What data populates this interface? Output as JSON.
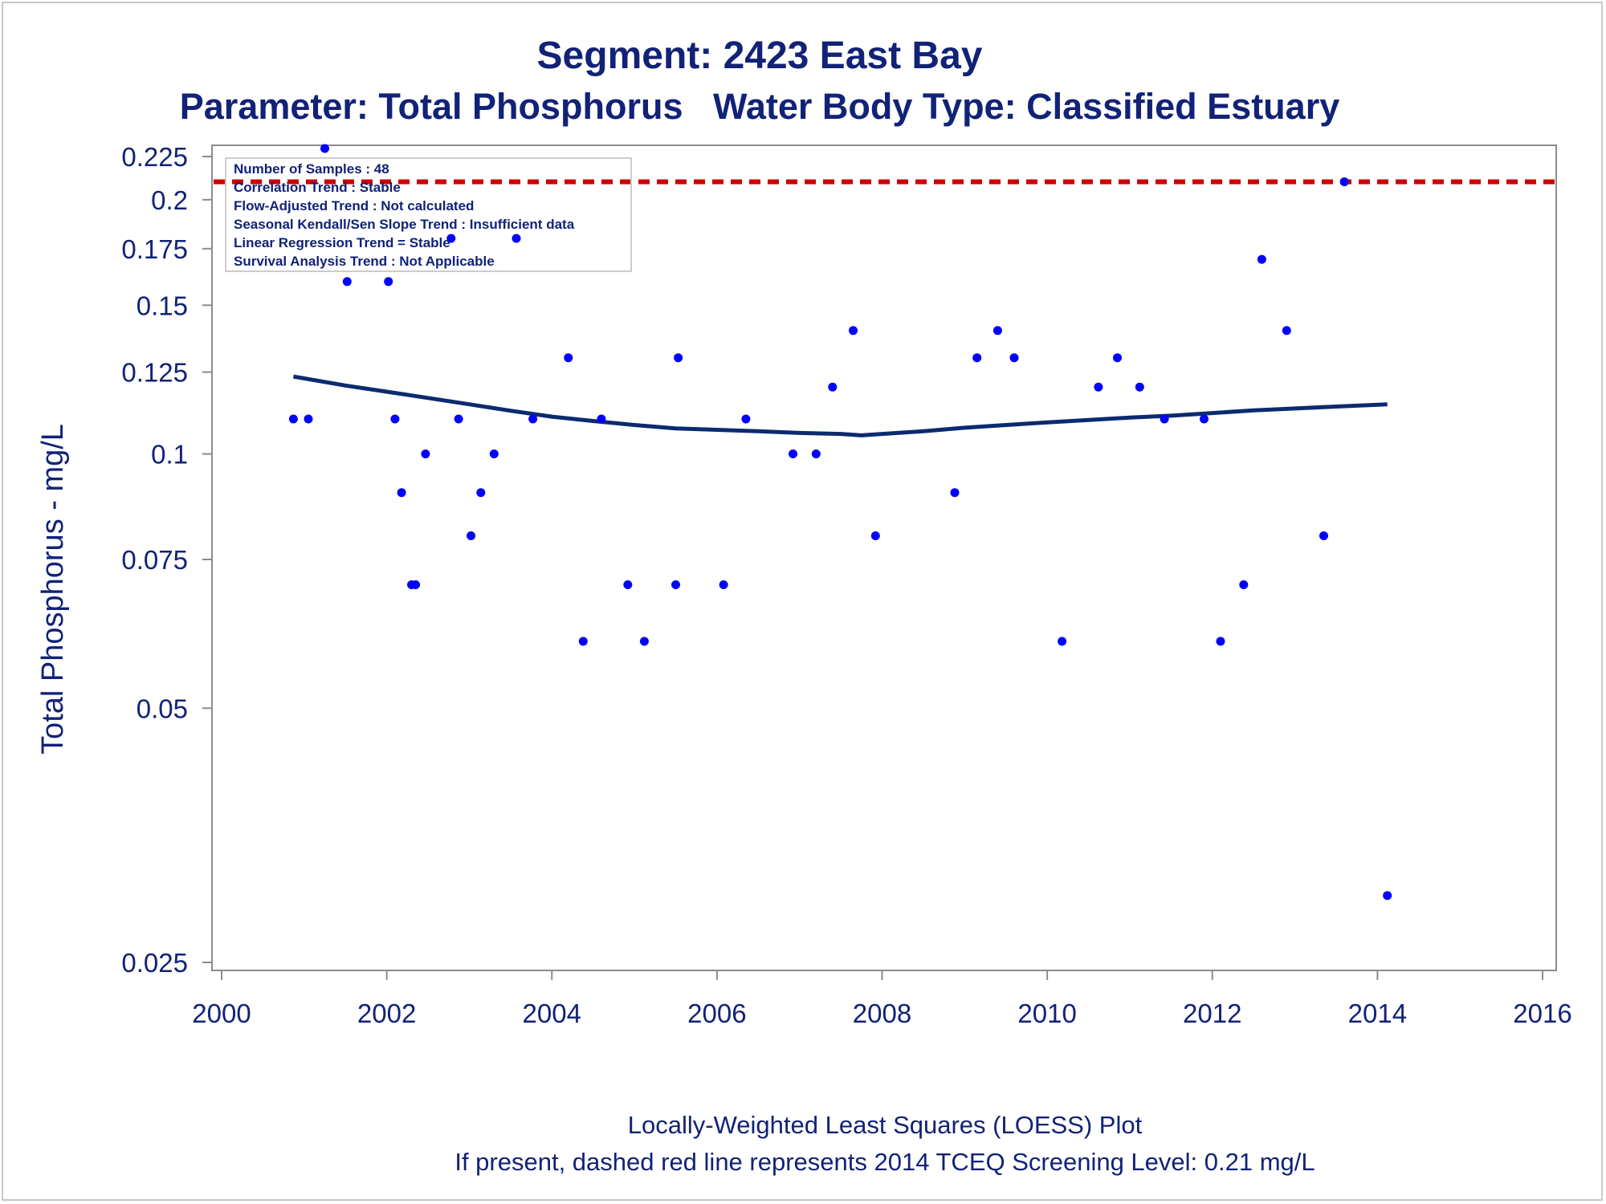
{
  "chart_data": {
    "type": "scatter",
    "title": "Segment: 2423  East Bay",
    "subtitle": "Parameter: Total Phosphorus   Water Body Type: Classified Estuary",
    "ylabel": "Total Phosphorus - mg/L",
    "xlabel": "",
    "footnotes": [
      "Locally-Weighted Least Squares (LOESS) Plot",
      "If present, dashed red line represents 2014 TCEQ Screening Level: 0.21 mg/L"
    ],
    "y_scale": "log",
    "xlim": [
      2000,
      2016
    ],
    "ylim": [
      0.025,
      0.232
    ],
    "x_ticks": [
      "2000",
      "2002",
      "2004",
      "2006",
      "2008",
      "2010",
      "2012",
      "2014",
      "2016"
    ],
    "y_ticks": [
      "0.025",
      "0.05",
      "0.075",
      "0.1",
      "0.125",
      "0.15",
      "0.175",
      "0.2",
      "0.225"
    ],
    "grid": false,
    "screening_level": {
      "value": 0.21,
      "color": "#cc0000",
      "style": "dashed"
    },
    "stats_box": [
      "Number of Samples : 48",
      "Correlation Trend : Stable",
      "Flow-Adjusted Trend : Not calculated",
      "Seasonal Kendall/Sen Slope Trend : Insufficient data",
      "Linear Regression Trend = Stable",
      "Survival Analysis Trend : Not Applicable"
    ],
    "series": [
      {
        "kind": "points",
        "color": "#0000ff",
        "points": [
          [
            2000.87,
            0.11
          ],
          [
            2001.05,
            0.11
          ],
          [
            2001.25,
            0.23
          ],
          [
            2001.52,
            0.16
          ],
          [
            2002.02,
            0.16
          ],
          [
            2002.1,
            0.11
          ],
          [
            2002.18,
            0.09
          ],
          [
            2002.3,
            0.07
          ],
          [
            2002.35,
            0.07
          ],
          [
            2002.47,
            0.1
          ],
          [
            2002.78,
            0.18
          ],
          [
            2002.87,
            0.11
          ],
          [
            2003.02,
            0.08
          ],
          [
            2003.14,
            0.09
          ],
          [
            2003.3,
            0.1
          ],
          [
            2003.57,
            0.18
          ],
          [
            2003.77,
            0.11
          ],
          [
            2004.2,
            0.13
          ],
          [
            2004.38,
            0.06
          ],
          [
            2004.6,
            0.11
          ],
          [
            2004.92,
            0.07
          ],
          [
            2005.12,
            0.06
          ],
          [
            2005.5,
            0.07
          ],
          [
            2005.53,
            0.13
          ],
          [
            2006.08,
            0.07
          ],
          [
            2006.35,
            0.11
          ],
          [
            2006.92,
            0.1
          ],
          [
            2007.2,
            0.1
          ],
          [
            2007.4,
            0.12
          ],
          [
            2007.65,
            0.14
          ],
          [
            2007.92,
            0.08
          ],
          [
            2008.88,
            0.09
          ],
          [
            2009.15,
            0.13
          ],
          [
            2009.4,
            0.14
          ],
          [
            2009.6,
            0.13
          ],
          [
            2010.18,
            0.06
          ],
          [
            2010.62,
            0.12
          ],
          [
            2010.85,
            0.13
          ],
          [
            2011.12,
            0.12
          ],
          [
            2011.42,
            0.11
          ],
          [
            2011.9,
            0.11
          ],
          [
            2012.1,
            0.06
          ],
          [
            2012.38,
            0.07
          ],
          [
            2012.6,
            0.17
          ],
          [
            2012.9,
            0.14
          ],
          [
            2013.35,
            0.08
          ],
          [
            2013.6,
            0.21
          ],
          [
            2014.12,
            0.03
          ]
        ]
      },
      {
        "kind": "loess",
        "color": "#0c2a6e",
        "points": [
          [
            2000.87,
            0.1235
          ],
          [
            2001.5,
            0.1205
          ],
          [
            2002.0,
            0.1185
          ],
          [
            2002.5,
            0.1165
          ],
          [
            2003.0,
            0.1145
          ],
          [
            2003.5,
            0.1125
          ],
          [
            2004.0,
            0.1107
          ],
          [
            2004.5,
            0.1094
          ],
          [
            2005.0,
            0.1082
          ],
          [
            2005.5,
            0.1072
          ],
          [
            2006.0,
            0.1068
          ],
          [
            2006.5,
            0.1064
          ],
          [
            2007.0,
            0.1059
          ],
          [
            2007.5,
            0.1056
          ],
          [
            2007.75,
            0.1052
          ],
          [
            2008.0,
            0.1056
          ],
          [
            2008.5,
            0.1064
          ],
          [
            2009.0,
            0.1074
          ],
          [
            2009.5,
            0.1082
          ],
          [
            2010.0,
            0.109
          ],
          [
            2010.5,
            0.1097
          ],
          [
            2011.0,
            0.1104
          ],
          [
            2011.5,
            0.111
          ],
          [
            2012.0,
            0.1118
          ],
          [
            2012.5,
            0.1126
          ],
          [
            2013.0,
            0.1132
          ],
          [
            2013.5,
            0.1138
          ],
          [
            2014.12,
            0.1145
          ]
        ]
      }
    ]
  }
}
